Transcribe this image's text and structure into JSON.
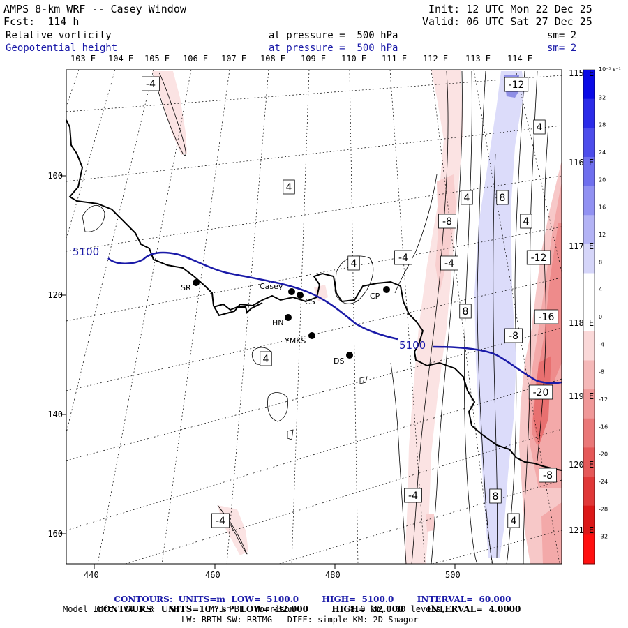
{
  "header": {
    "title": "AMPS 8-km WRF -- Casey Window",
    "forecast": "Fcst:  114 h",
    "init": "Init: 12 UTC Mon 22 Dec 25",
    "valid": "Valid: 06 UTC Sat 27 Dec 25"
  },
  "fields": [
    {
      "name": "Relative vorticity",
      "level": "at pressure =  500 hPa",
      "smooth": "sm= 2",
      "color": "#000000"
    },
    {
      "name": "Geopotential height",
      "level": "at pressure =  500 hPa",
      "smooth": "sm= 2",
      "color": "#1a1aa8"
    }
  ],
  "top_longitudes": [
    "103 E",
    "104 E",
    "105 E",
    "106 E",
    "107 E",
    "108 E",
    "109 E",
    "110 E",
    "111 E",
    "112 E",
    "113 E",
    "114 E"
  ],
  "right_longitudes": [
    "115 E",
    "116 E",
    "117 E",
    "118 E",
    "119 E",
    "120 E",
    "121 E"
  ],
  "y_axis_ticks": [
    "100",
    "120",
    "140",
    "160"
  ],
  "x_axis_ticks": [
    "440",
    "460",
    "480",
    "500"
  ],
  "stations": [
    {
      "id": "SR",
      "label": "SR"
    },
    {
      "id": "Casey",
      "label": "Casey"
    },
    {
      "id": "CS",
      "label": "CS"
    },
    {
      "id": "CP",
      "label": "CP"
    },
    {
      "id": "HN",
      "label": "HN"
    },
    {
      "id": "YMKS",
      "label": "YMKS"
    },
    {
      "id": "DS",
      "label": "DS"
    }
  ],
  "height_contour_label": "5100",
  "vorticity_labels": [
    "-4",
    "-12",
    "4",
    "4",
    "8",
    "4",
    "-8",
    "-4",
    "4",
    "-4",
    "-12",
    "8",
    "-16",
    "-8",
    "4",
    "4",
    "-20",
    "-8",
    "-4",
    "8",
    "4",
    "-4"
  ],
  "colorbar": {
    "unit": "10⁻⁵ s⁻¹",
    "levels": [
      "32",
      "28",
      "24",
      "20",
      "16",
      "12",
      "8",
      "4",
      "0",
      "-4",
      "-8",
      "-12",
      "-16",
      "-20",
      "-24",
      "-28",
      "-32"
    ],
    "colors": [
      "#0a0ae6",
      "#2b2be8",
      "#4d4deb",
      "#6f6fee",
      "#9191f2",
      "#b3b3f5",
      "#d5d5f9",
      "#ffffff",
      "#ffffff",
      "#fad8d8",
      "#f5b8b8",
      "#f09898",
      "#ea7878",
      "#e55858",
      "#e03838",
      "#db1818",
      "#ff1010"
    ]
  },
  "footer": {
    "contours1": {
      "label": "CONTOURS:",
      "units": "UNITS=m",
      "low": "LOW=  5100.0",
      "high": "HIGH=  5100.0",
      "interval": "INTERVAL=  60.000"
    },
    "contours2": {
      "label": "CONTOURS:",
      "units": "UNITS=10⁻⁵ s⁻¹",
      "low": "LOW= -32.000",
      "high": "HIGH=  32.000",
      "interval": "INTERVAL=  4.0000"
    },
    "model_info": "Model Info: V4.3.3   KF      MYJ PBL  Morrison           8.0 km,  60 levels,",
    "model_info2": "LW: RRTM SW: RRTMG   DIFF: simple KM: 2D Smagor"
  }
}
